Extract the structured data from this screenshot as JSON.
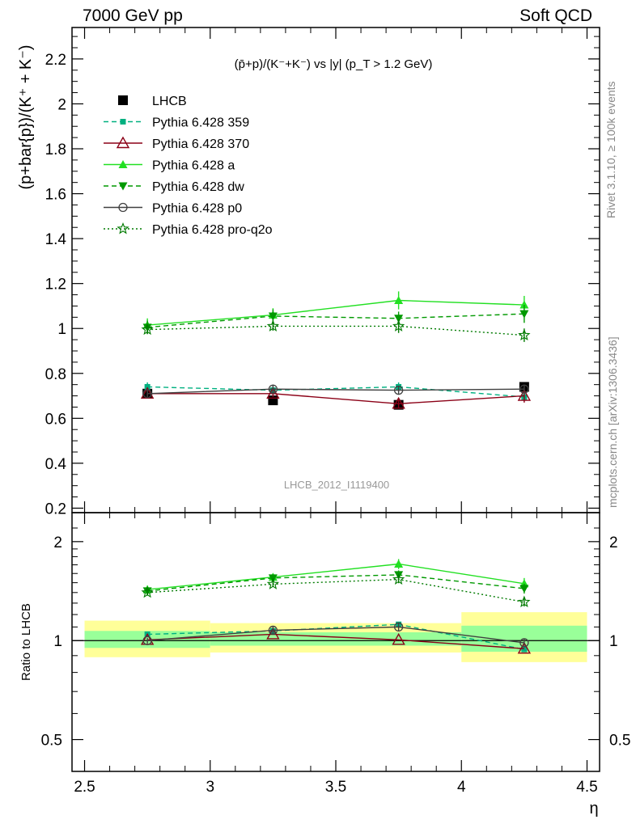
{
  "header": {
    "left": "7000 GeV pp",
    "right": "Soft QCD"
  },
  "side_labels": {
    "rivet": "Rivet 3.1.10, ≥ 100k events",
    "mcplots": "mcplots.cern.ch [arXiv:1306.3436]"
  },
  "main_panel": {
    "title": "(p̄+p)/(K⁻+K⁻) vs |y| (p_T > 1.2 GeV)",
    "ylabel": "(p+bar{p})/(K⁺ + K⁻)",
    "watermark": "LHCB_2012_I1119400",
    "ytick_labels": [
      "0.2",
      "0.4",
      "0.6",
      "0.8",
      "1",
      "1.2",
      "1.4",
      "1.6",
      "1.8",
      "2",
      "2.2"
    ]
  },
  "ratio_panel": {
    "ylabel": "Ratio to LHCB",
    "ytick_labels": [
      "0.5",
      "1",
      "2"
    ]
  },
  "xaxis": {
    "label": "η",
    "tick_labels": [
      "2.5",
      "3",
      "3.5",
      "4",
      "4.5"
    ]
  },
  "colors": {
    "lhcb": "#000000",
    "p359": "#00b080",
    "p370": "#8b0016",
    "pa": "#22e022",
    "pdw": "#009900",
    "pp0": "#404040",
    "pq2o": "#007a00",
    "band_inner": "#99ff99",
    "band_outer": "#ffff99"
  },
  "chart_data": [
    {
      "type": "scatter",
      "title": "(p̄+p)/(K⁻+K⁻) vs |y| (p_T > 1.2 GeV)",
      "xlabel": "η",
      "ylabel": "(p+bar{p})/(K⁺ + K⁻)",
      "xlim": [
        2.45,
        4.55
      ],
      "ylim": [
        0.18,
        2.34
      ],
      "x": [
        2.75,
        3.25,
        3.75,
        4.25
      ],
      "series": [
        {
          "name": "LHCB",
          "key": "lhcb",
          "style": "none",
          "marker": "square-filled",
          "values": [
            0.71,
            0.68,
            0.66,
            0.74
          ]
        },
        {
          "name": "Pythia 6.428 359",
          "key": "p359",
          "style": "dashed",
          "marker": "square-small",
          "values": [
            0.74,
            0.725,
            0.74,
            0.695
          ],
          "errors": [
            0.02,
            0.02,
            0.02,
            0.02
          ]
        },
        {
          "name": "Pythia 6.428 370",
          "key": "p370",
          "style": "solid",
          "marker": "triangle-open",
          "values": [
            0.71,
            0.71,
            0.665,
            0.7
          ],
          "errors": [
            0.015,
            0.015,
            0.02,
            0.03
          ]
        },
        {
          "name": "Pythia 6.428 a",
          "key": "pa",
          "style": "solid",
          "marker": "triangle-up-filled",
          "values": [
            1.015,
            1.06,
            1.125,
            1.105
          ],
          "errors": [
            0.03,
            0.03,
            0.04,
            0.04
          ]
        },
        {
          "name": "Pythia 6.428 dw",
          "key": "pdw",
          "style": "dashed",
          "marker": "triangle-down-filled",
          "values": [
            1.005,
            1.055,
            1.045,
            1.065
          ],
          "errors": [
            0.03,
            0.03,
            0.03,
            0.04
          ]
        },
        {
          "name": "Pythia 6.428 p0",
          "key": "pp0",
          "style": "solid",
          "marker": "circle-open",
          "values": [
            0.71,
            0.73,
            0.725,
            0.73
          ],
          "errors": [
            0.015,
            0.02,
            0.02,
            0.02
          ]
        },
        {
          "name": "Pythia 6.428 pro-q2o",
          "key": "pq2o",
          "style": "dotted",
          "marker": "star-open",
          "values": [
            0.995,
            1.01,
            1.01,
            0.97
          ],
          "errors": [
            0.02,
            0.02,
            0.03,
            0.03
          ]
        }
      ],
      "legend_position": "top-left"
    },
    {
      "type": "scatter",
      "ylabel": "Ratio to LHCB",
      "xlabel": "η",
      "xlim": [
        2.45,
        4.55
      ],
      "ylim": [
        0.4,
        2.45
      ],
      "yscale": "log",
      "reference_line": 1,
      "bands": [
        {
          "x": [
            2.5,
            3.0
          ],
          "inner": [
            0.95,
            1.07
          ],
          "outer": [
            0.89,
            1.15
          ]
        },
        {
          "x": [
            3.0,
            4.0
          ],
          "inner": [
            0.965,
            1.06
          ],
          "outer": [
            0.92,
            1.13
          ]
        },
        {
          "x": [
            4.0,
            4.5
          ],
          "inner": [
            0.925,
            1.11
          ],
          "outer": [
            0.86,
            1.22
          ]
        }
      ],
      "x": [
        2.75,
        3.25,
        3.75,
        4.25
      ],
      "series": [
        {
          "name": "Pythia 6.428 359",
          "key": "p359",
          "style": "dashed",
          "marker": "square-small",
          "values": [
            1.045,
            1.07,
            1.12,
            0.94
          ]
        },
        {
          "name": "Pythia 6.428 370",
          "key": "p370",
          "style": "solid",
          "marker": "triangle-open",
          "values": [
            1.005,
            1.045,
            1.005,
            0.945
          ]
        },
        {
          "name": "Pythia 6.428 a",
          "key": "pa",
          "style": "solid",
          "marker": "triangle-up-filled",
          "values": [
            1.43,
            1.56,
            1.71,
            1.49
          ],
          "errors": [
            0.04,
            0.04,
            0.06,
            0.06
          ]
        },
        {
          "name": "Pythia 6.428 dw",
          "key": "pdw",
          "style": "dashed",
          "marker": "triangle-down-filled",
          "values": [
            1.415,
            1.55,
            1.585,
            1.44
          ],
          "errors": [
            0.04,
            0.04,
            0.05,
            0.05
          ]
        },
        {
          "name": "Pythia 6.428 p0",
          "key": "pp0",
          "style": "solid",
          "marker": "circle-open",
          "values": [
            1.0,
            1.075,
            1.1,
            0.985
          ],
          "errors": [
            0.02,
            0.03,
            0.03,
            0.03
          ]
        },
        {
          "name": "Pythia 6.428 pro-q2o",
          "key": "pq2o",
          "style": "dotted",
          "marker": "star-open",
          "values": [
            1.4,
            1.485,
            1.535,
            1.31
          ],
          "errors": [
            0.03,
            0.03,
            0.04,
            0.04
          ]
        }
      ]
    }
  ]
}
